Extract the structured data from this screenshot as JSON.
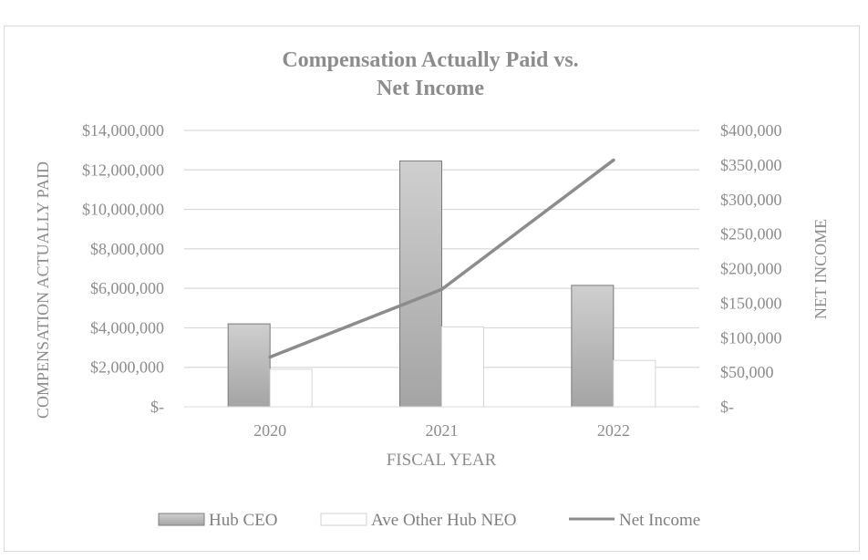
{
  "chart_data": {
    "type": "bar",
    "title_lines": [
      "Compensation Actually Paid vs.",
      "Net Income"
    ],
    "xlabel": "FISCAL YEAR",
    "ylabel": "COMPENSATION ACTUALLY PAID",
    "y2label": "NET INCOME",
    "categories": [
      "2020",
      "2021",
      "2022"
    ],
    "ylim": [
      0,
      14000000
    ],
    "y_ticks": [
      0,
      2000000,
      4000000,
      6000000,
      8000000,
      10000000,
      12000000,
      14000000
    ],
    "y_tick_labels": [
      "$-",
      "$2,000,000",
      "$4,000,000",
      "$6,000,000",
      "$8,000,000",
      "$10,000,000",
      "$12,000,000",
      "$14,000,000"
    ],
    "y2lim": [
      0,
      400000
    ],
    "y2_ticks": [
      0,
      50000,
      100000,
      150000,
      200000,
      250000,
      300000,
      350000,
      400000
    ],
    "y2_tick_labels": [
      "$-",
      "$50,000",
      "$100,000",
      "$150,000",
      "$200,000",
      "$250,000",
      "$300,000",
      "$350,000",
      "$400,000"
    ],
    "grid": true,
    "legend_position": "bottom",
    "series": [
      {
        "name": "Hub CEO",
        "kind": "bar",
        "axis": "left",
        "values": [
          4200000,
          12450000,
          6150000
        ],
        "color": "#a8a8a8"
      },
      {
        "name": "Ave Other Hub NEO",
        "kind": "bar",
        "axis": "left",
        "values": [
          1900000,
          4050000,
          2350000
        ],
        "color": "#ffffff"
      },
      {
        "name": "Net Income",
        "kind": "line",
        "axis": "right",
        "values": [
          72000,
          170000,
          357000
        ],
        "color": "#8c8c8c"
      }
    ]
  }
}
